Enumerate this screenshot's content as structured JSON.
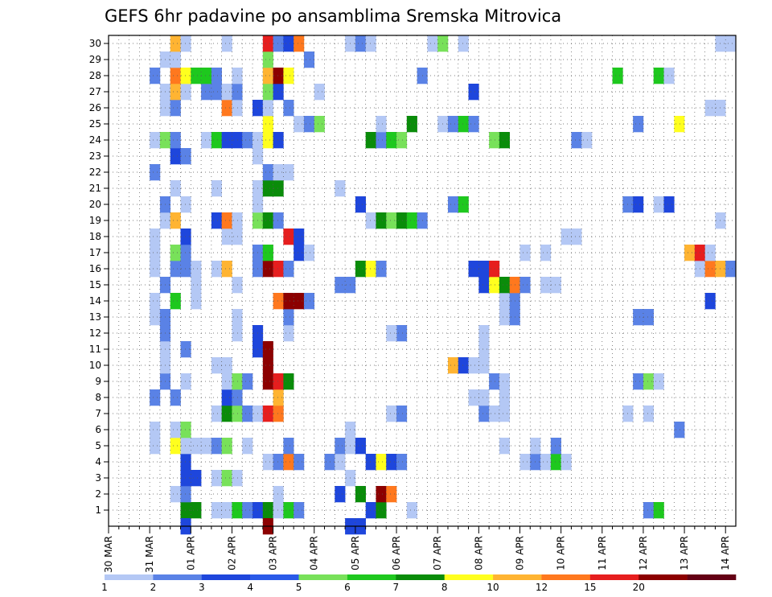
{
  "chart_data": {
    "type": "heatmap",
    "title": "GEFS 6hr padavine po ansamblima Sremska Mitrovica",
    "y_members": [
      1,
      2,
      3,
      4,
      5,
      6,
      7,
      8,
      9,
      10,
      11,
      12,
      13,
      14,
      15,
      16,
      17,
      18,
      19,
      20,
      21,
      22,
      23,
      24,
      25,
      26,
      27,
      28,
      29,
      30
    ],
    "x_tick_labels": [
      "30 MAR",
      "31 MAR",
      "01 APR",
      "02 APR",
      "03 APR",
      "04 APR",
      "05 APR",
      "06 APR",
      "07 APR",
      "08 APR",
      "09 APR",
      "10 APR",
      "11 APR",
      "12 APR",
      "13 APR",
      "14 APR"
    ],
    "steps_per_day": 4,
    "total_steps": 61,
    "legend_labels": [
      "1",
      "2",
      "3",
      "4",
      "5",
      "6",
      "7",
      "8",
      "10",
      "12",
      "15",
      "20"
    ],
    "legend_colors": [
      "#b4c8f5",
      "#5a82e6",
      "#1e46dc",
      "#2a5ae8",
      "#78e15a",
      "#1ec81e",
      "#0a8c0a",
      "#ffff1e",
      "#ffb432",
      "#ff781e",
      "#e61e1e",
      "#8c0000",
      "#640014"
    ],
    "cells": [
      [
        1,
        7,
        "#0a8c0a"
      ],
      [
        1,
        8,
        "#0a8c0a"
      ],
      [
        1,
        10,
        "#b4c8f5"
      ],
      [
        1,
        11,
        "#b4c8f5"
      ],
      [
        1,
        12,
        "#1ec81e"
      ],
      [
        1,
        13,
        "#5a82e6"
      ],
      [
        1,
        14,
        "#1e46dc"
      ],
      [
        1,
        15,
        "#0a8c0a"
      ],
      [
        1,
        16,
        "#b4c8f5"
      ],
      [
        1,
        17,
        "#1ec81e"
      ],
      [
        1,
        18,
        "#5a82e6"
      ],
      [
        1,
        25,
        "#1e46dc"
      ],
      [
        1,
        26,
        "#0a8c0a"
      ],
      [
        1,
        29,
        "#b4c8f5"
      ],
      [
        1,
        52,
        "#5a82e6"
      ],
      [
        1,
        53,
        "#1ec81e"
      ],
      [
        2,
        6,
        "#b4c8f5"
      ],
      [
        2,
        7,
        "#5a82e6"
      ],
      [
        2,
        16,
        "#b4c8f5"
      ],
      [
        2,
        22,
        "#1e46dc"
      ],
      [
        2,
        24,
        "#0a8c0a"
      ],
      [
        2,
        26,
        "#8c0000"
      ],
      [
        2,
        27,
        "#ff781e"
      ],
      [
        3,
        7,
        "#1e46dc"
      ],
      [
        3,
        8,
        "#1e46dc"
      ],
      [
        3,
        10,
        "#b4c8f5"
      ],
      [
        3,
        11,
        "#78e15a"
      ],
      [
        3,
        12,
        "#b4c8f5"
      ],
      [
        3,
        23,
        "#b4c8f5"
      ],
      [
        4,
        7,
        "#1e46dc"
      ],
      [
        4,
        15,
        "#b4c8f5"
      ],
      [
        4,
        16,
        "#5a82e6"
      ],
      [
        4,
        17,
        "#ff781e"
      ],
      [
        4,
        18,
        "#5a82e6"
      ],
      [
        4,
        21,
        "#5a82e6"
      ],
      [
        4,
        22,
        "#b4c8f5"
      ],
      [
        4,
        25,
        "#1e46dc"
      ],
      [
        4,
        26,
        "#ffff1e"
      ],
      [
        4,
        27,
        "#1e46dc"
      ],
      [
        4,
        28,
        "#5a82e6"
      ],
      [
        4,
        40,
        "#b4c8f5"
      ],
      [
        4,
        41,
        "#5a82e6"
      ],
      [
        4,
        42,
        "#b4c8f5"
      ],
      [
        4,
        43,
        "#1ec81e"
      ],
      [
        4,
        44,
        "#b4c8f5"
      ],
      [
        5,
        4,
        "#b4c8f5"
      ],
      [
        5,
        6,
        "#ffff1e"
      ],
      [
        5,
        7,
        "#b4c8f5"
      ],
      [
        5,
        8,
        "#b4c8f5"
      ],
      [
        5,
        9,
        "#b4c8f5"
      ],
      [
        5,
        10,
        "#5a82e6"
      ],
      [
        5,
        11,
        "#78e15a"
      ],
      [
        5,
        13,
        "#b4c8f5"
      ],
      [
        5,
        17,
        "#5a82e6"
      ],
      [
        5,
        22,
        "#5a82e6"
      ],
      [
        5,
        23,
        "#b4c8f5"
      ],
      [
        5,
        24,
        "#1e46dc"
      ],
      [
        5,
        38,
        "#b4c8f5"
      ],
      [
        5,
        41,
        "#b4c8f5"
      ],
      [
        5,
        43,
        "#5a82e6"
      ],
      [
        6,
        4,
        "#b4c8f5"
      ],
      [
        6,
        6,
        "#b4c8f5"
      ],
      [
        6,
        7,
        "#78e15a"
      ],
      [
        6,
        23,
        "#b4c8f5"
      ],
      [
        6,
        55,
        "#5a82e6"
      ],
      [
        7,
        10,
        "#b4c8f5"
      ],
      [
        7,
        11,
        "#0a8c0a"
      ],
      [
        7,
        12,
        "#78e15a"
      ],
      [
        7,
        13,
        "#5a82e6"
      ],
      [
        7,
        14,
        "#b4c8f5"
      ],
      [
        7,
        15,
        "#e61e1e"
      ],
      [
        7,
        16,
        "#ff781e"
      ],
      [
        7,
        27,
        "#b4c8f5"
      ],
      [
        7,
        28,
        "#5a82e6"
      ],
      [
        7,
        36,
        "#5a82e6"
      ],
      [
        7,
        37,
        "#b4c8f5"
      ],
      [
        7,
        38,
        "#b4c8f5"
      ],
      [
        7,
        50,
        "#b4c8f5"
      ],
      [
        7,
        52,
        "#b4c8f5"
      ],
      [
        8,
        4,
        "#5a82e6"
      ],
      [
        8,
        6,
        "#5a82e6"
      ],
      [
        8,
        11,
        "#1e46dc"
      ],
      [
        8,
        12,
        "#5a82e6"
      ],
      [
        8,
        16,
        "#ffb432"
      ],
      [
        8,
        35,
        "#b4c8f5"
      ],
      [
        8,
        36,
        "#b4c8f5"
      ],
      [
        8,
        38,
        "#b4c8f5"
      ],
      [
        9,
        5,
        "#5a82e6"
      ],
      [
        9,
        7,
        "#b4c8f5"
      ],
      [
        9,
        11,
        "#b4c8f5"
      ],
      [
        9,
        12,
        "#78e15a"
      ],
      [
        9,
        13,
        "#5a82e6"
      ],
      [
        9,
        15,
        "#8c0000"
      ],
      [
        9,
        16,
        "#e61e1e"
      ],
      [
        9,
        17,
        "#0a8c0a"
      ],
      [
        9,
        37,
        "#5a82e6"
      ],
      [
        9,
        38,
        "#b4c8f5"
      ],
      [
        9,
        51,
        "#5a82e6"
      ],
      [
        9,
        52,
        "#78e15a"
      ],
      [
        9,
        53,
        "#b4c8f5"
      ],
      [
        10,
        5,
        "#b4c8f5"
      ],
      [
        10,
        10,
        "#b4c8f5"
      ],
      [
        10,
        11,
        "#b4c8f5"
      ],
      [
        10,
        15,
        "#8c0000"
      ],
      [
        10,
        33,
        "#ffb432"
      ],
      [
        10,
        34,
        "#1e46dc"
      ],
      [
        10,
        35,
        "#b4c8f5"
      ],
      [
        10,
        36,
        "#b4c8f5"
      ],
      [
        11,
        5,
        "#b4c8f5"
      ],
      [
        11,
        7,
        "#5a82e6"
      ],
      [
        11,
        14,
        "#1e46dc"
      ],
      [
        11,
        15,
        "#8c0000"
      ],
      [
        11,
        36,
        "#b4c8f5"
      ],
      [
        12,
        5,
        "#5a82e6"
      ],
      [
        12,
        12,
        "#b4c8f5"
      ],
      [
        12,
        14,
        "#1e46dc"
      ],
      [
        12,
        28,
        "#5a82e6"
      ],
      [
        12,
        27,
        "#b4c8f5"
      ],
      [
        12,
        36,
        "#b4c8f5"
      ],
      [
        12,
        17,
        "#b4c8f5"
      ],
      [
        13,
        4,
        "#b4c8f5"
      ],
      [
        13,
        5,
        "#5a82e6"
      ],
      [
        13,
        12,
        "#b4c8f5"
      ],
      [
        13,
        17,
        "#5a82e6"
      ],
      [
        13,
        38,
        "#b4c8f5"
      ],
      [
        13,
        39,
        "#5a82e6"
      ],
      [
        13,
        51,
        "#5a82e6"
      ],
      [
        13,
        52,
        "#5a82e6"
      ],
      [
        14,
        4,
        "#b4c8f5"
      ],
      [
        14,
        6,
        "#1ec81e"
      ],
      [
        14,
        8,
        "#b4c8f5"
      ],
      [
        14,
        16,
        "#ff781e"
      ],
      [
        14,
        17,
        "#8c0000"
      ],
      [
        14,
        18,
        "#8c0000"
      ],
      [
        14,
        19,
        "#5a82e6"
      ],
      [
        14,
        38,
        "#b4c8f5"
      ],
      [
        14,
        39,
        "#5a82e6"
      ],
      [
        14,
        58,
        "#1e46dc"
      ],
      [
        15,
        5,
        "#5a82e6"
      ],
      [
        15,
        8,
        "#b4c8f5"
      ],
      [
        15,
        12,
        "#b4c8f5"
      ],
      [
        15,
        22,
        "#5a82e6"
      ],
      [
        15,
        23,
        "#5a82e6"
      ],
      [
        15,
        36,
        "#1e46dc"
      ],
      [
        15,
        37,
        "#ffff1e"
      ],
      [
        15,
        38,
        "#0a8c0a"
      ],
      [
        15,
        39,
        "#ff781e"
      ],
      [
        15,
        40,
        "#5a82e6"
      ],
      [
        15,
        42,
        "#b4c8f5"
      ],
      [
        15,
        43,
        "#b4c8f5"
      ],
      [
        16,
        4,
        "#b4c8f5"
      ],
      [
        16,
        6,
        "#5a82e6"
      ],
      [
        16,
        7,
        "#5a82e6"
      ],
      [
        16,
        8,
        "#b4c8f5"
      ],
      [
        16,
        10,
        "#b4c8f5"
      ],
      [
        16,
        11,
        "#ffb432"
      ],
      [
        16,
        14,
        "#5a82e6"
      ],
      [
        16,
        15,
        "#8c0000"
      ],
      [
        16,
        16,
        "#e61e1e"
      ],
      [
        16,
        17,
        "#5a82e6"
      ],
      [
        16,
        24,
        "#0a8c0a"
      ],
      [
        16,
        25,
        "#ffff1e"
      ],
      [
        16,
        26,
        "#5a82e6"
      ],
      [
        16,
        35,
        "#1e46dc"
      ],
      [
        16,
        36,
        "#1e46dc"
      ],
      [
        16,
        37,
        "#e61e1e"
      ],
      [
        16,
        57,
        "#b4c8f5"
      ],
      [
        16,
        58,
        "#ff781e"
      ],
      [
        16,
        59,
        "#ffb432"
      ],
      [
        16,
        60,
        "#5a82e6"
      ],
      [
        17,
        4,
        "#b4c8f5"
      ],
      [
        17,
        6,
        "#78e15a"
      ],
      [
        17,
        7,
        "#5a82e6"
      ],
      [
        17,
        14,
        "#5a82e6"
      ],
      [
        17,
        15,
        "#1ec81e"
      ],
      [
        17,
        18,
        "#1e46dc"
      ],
      [
        17,
        19,
        "#b4c8f5"
      ],
      [
        17,
        40,
        "#b4c8f5"
      ],
      [
        17,
        42,
        "#b4c8f5"
      ],
      [
        17,
        56,
        "#ffb432"
      ],
      [
        17,
        57,
        "#e61e1e"
      ],
      [
        17,
        58,
        "#b4c8f5"
      ],
      [
        18,
        4,
        "#b4c8f5"
      ],
      [
        18,
        7,
        "#1e46dc"
      ],
      [
        18,
        11,
        "#b4c8f5"
      ],
      [
        18,
        12,
        "#b4c8f5"
      ],
      [
        18,
        17,
        "#e61e1e"
      ],
      [
        18,
        18,
        "#1e46dc"
      ],
      [
        18,
        44,
        "#b4c8f5"
      ],
      [
        18,
        45,
        "#b4c8f5"
      ],
      [
        19,
        5,
        "#b4c8f5"
      ],
      [
        19,
        6,
        "#ffb432"
      ],
      [
        19,
        10,
        "#1e46dc"
      ],
      [
        19,
        11,
        "#ff781e"
      ],
      [
        19,
        12,
        "#b4c8f5"
      ],
      [
        19,
        14,
        "#78e15a"
      ],
      [
        19,
        15,
        "#0a8c0a"
      ],
      [
        19,
        16,
        "#5a82e6"
      ],
      [
        19,
        25,
        "#b4c8f5"
      ],
      [
        19,
        26,
        "#0a8c0a"
      ],
      [
        19,
        27,
        "#78e15a"
      ],
      [
        19,
        28,
        "#0a8c0a"
      ],
      [
        19,
        29,
        "#1ec81e"
      ],
      [
        19,
        30,
        "#5a82e6"
      ],
      [
        19,
        59,
        "#b4c8f5"
      ],
      [
        20,
        5,
        "#5a82e6"
      ],
      [
        20,
        7,
        "#b4c8f5"
      ],
      [
        20,
        14,
        "#b4c8f5"
      ],
      [
        20,
        24,
        "#1e46dc"
      ],
      [
        20,
        33,
        "#5a82e6"
      ],
      [
        20,
        34,
        "#1ec81e"
      ],
      [
        20,
        50,
        "#5a82e6"
      ],
      [
        20,
        51,
        "#1e46dc"
      ],
      [
        20,
        53,
        "#b4c8f5"
      ],
      [
        20,
        54,
        "#1e46dc"
      ],
      [
        21,
        6,
        "#b4c8f5"
      ],
      [
        21,
        10,
        "#b4c8f5"
      ],
      [
        21,
        14,
        "#b4c8f5"
      ],
      [
        21,
        15,
        "#0a8c0a"
      ],
      [
        21,
        16,
        "#0a8c0a"
      ],
      [
        21,
        22,
        "#b4c8f5"
      ],
      [
        22,
        4,
        "#5a82e6"
      ],
      [
        22,
        15,
        "#5a82e6"
      ],
      [
        22,
        16,
        "#b4c8f5"
      ],
      [
        22,
        17,
        "#b4c8f5"
      ],
      [
        23,
        6,
        "#1e46dc"
      ],
      [
        23,
        7,
        "#5a82e6"
      ],
      [
        23,
        14,
        "#b4c8f5"
      ],
      [
        24,
        4,
        "#b4c8f5"
      ],
      [
        24,
        5,
        "#78e15a"
      ],
      [
        24,
        6,
        "#5a82e6"
      ],
      [
        24,
        9,
        "#b4c8f5"
      ],
      [
        24,
        10,
        "#1ec81e"
      ],
      [
        24,
        11,
        "#1e46dc"
      ],
      [
        24,
        12,
        "#1e46dc"
      ],
      [
        24,
        13,
        "#5a82e6"
      ],
      [
        24,
        14,
        "#b4c8f5"
      ],
      [
        24,
        15,
        "#ffff1e"
      ],
      [
        24,
        16,
        "#1e46dc"
      ],
      [
        24,
        25,
        "#0a8c0a"
      ],
      [
        24,
        26,
        "#5a82e6"
      ],
      [
        24,
        27,
        "#1ec81e"
      ],
      [
        24,
        28,
        "#78e15a"
      ],
      [
        24,
        37,
        "#78e15a"
      ],
      [
        24,
        38,
        "#0a8c0a"
      ],
      [
        24,
        45,
        "#5a82e6"
      ],
      [
        24,
        46,
        "#b4c8f5"
      ],
      [
        25,
        15,
        "#ffff1e"
      ],
      [
        25,
        18,
        "#b4c8f5"
      ],
      [
        25,
        19,
        "#5a82e6"
      ],
      [
        25,
        20,
        "#78e15a"
      ],
      [
        25,
        26,
        "#b4c8f5"
      ],
      [
        25,
        29,
        "#0a8c0a"
      ],
      [
        25,
        32,
        "#b4c8f5"
      ],
      [
        25,
        33,
        "#5a82e6"
      ],
      [
        25,
        34,
        "#1ec81e"
      ],
      [
        25,
        35,
        "#5a82e6"
      ],
      [
        25,
        51,
        "#5a82e6"
      ],
      [
        25,
        55,
        "#ffff1e"
      ],
      [
        26,
        5,
        "#b4c8f5"
      ],
      [
        26,
        6,
        "#5a82e6"
      ],
      [
        26,
        11,
        "#ff781e"
      ],
      [
        26,
        12,
        "#b4c8f5"
      ],
      [
        26,
        14,
        "#1e46dc"
      ],
      [
        26,
        15,
        "#b4c8f5"
      ],
      [
        26,
        17,
        "#5a82e6"
      ],
      [
        26,
        58,
        "#b4c8f5"
      ],
      [
        26,
        59,
        "#b4c8f5"
      ],
      [
        27,
        5,
        "#b4c8f5"
      ],
      [
        27,
        6,
        "#ffb432"
      ],
      [
        27,
        7,
        "#b4c8f5"
      ],
      [
        27,
        9,
        "#5a82e6"
      ],
      [
        27,
        10,
        "#5a82e6"
      ],
      [
        27,
        11,
        "#b4c8f5"
      ],
      [
        27,
        12,
        "#5a82e6"
      ],
      [
        27,
        15,
        "#78e15a"
      ],
      [
        27,
        16,
        "#1e46dc"
      ],
      [
        27,
        20,
        "#b4c8f5"
      ],
      [
        27,
        35,
        "#1e46dc"
      ],
      [
        28,
        4,
        "#5a82e6"
      ],
      [
        28,
        6,
        "#ff781e"
      ],
      [
        28,
        7,
        "#ffff1e"
      ],
      [
        28,
        8,
        "#1ec81e"
      ],
      [
        28,
        9,
        "#1ec81e"
      ],
      [
        28,
        10,
        "#5a82e6"
      ],
      [
        28,
        12,
        "#b4c8f5"
      ],
      [
        28,
        15,
        "#ffb432"
      ],
      [
        28,
        16,
        "#8c0000"
      ],
      [
        28,
        17,
        "#ffff1e"
      ],
      [
        28,
        30,
        "#5a82e6"
      ],
      [
        28,
        49,
        "#1ec81e"
      ],
      [
        28,
        53,
        "#1ec81e"
      ],
      [
        28,
        54,
        "#b4c8f5"
      ],
      [
        29,
        5,
        "#b4c8f5"
      ],
      [
        29,
        6,
        "#b4c8f5"
      ],
      [
        29,
        15,
        "#78e15a"
      ],
      [
        29,
        19,
        "#5a82e6"
      ],
      [
        30,
        6,
        "#ffb432"
      ],
      [
        30,
        7,
        "#b4c8f5"
      ],
      [
        30,
        11,
        "#b4c8f5"
      ],
      [
        30,
        15,
        "#e61e1e"
      ],
      [
        30,
        16,
        "#5a82e6"
      ],
      [
        30,
        17,
        "#1e46dc"
      ],
      [
        30,
        18,
        "#ff781e"
      ],
      [
        30,
        23,
        "#b4c8f5"
      ],
      [
        30,
        24,
        "#5a82e6"
      ],
      [
        30,
        25,
        "#b4c8f5"
      ],
      [
        30,
        31,
        "#b4c8f5"
      ],
      [
        30,
        32,
        "#78e15a"
      ],
      [
        30,
        34,
        "#b4c8f5"
      ],
      [
        30,
        59,
        "#b4c8f5"
      ],
      [
        30,
        60,
        "#b4c8f5"
      ],
      [
        0,
        7,
        "#1e46dc"
      ],
      [
        0,
        15,
        "#8c0000"
      ],
      [
        0,
        23,
        "#1e46dc"
      ],
      [
        0,
        24,
        "#1e46dc"
      ]
    ]
  }
}
